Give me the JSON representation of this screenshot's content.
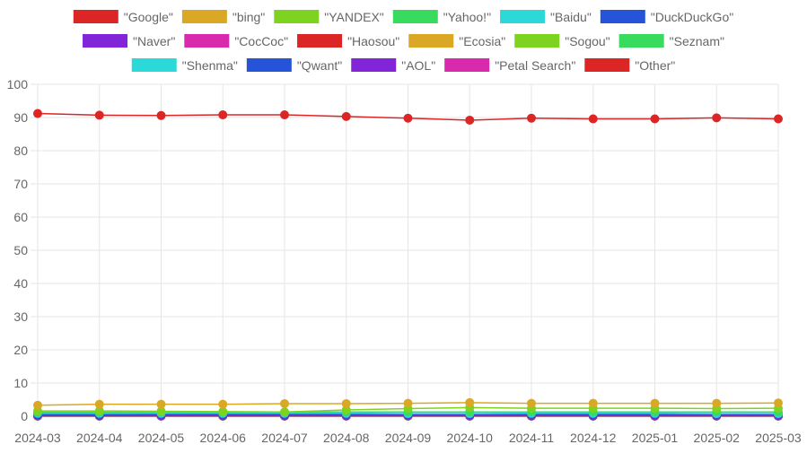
{
  "chart_data": {
    "type": "line",
    "title": "",
    "xlabel": "",
    "ylabel": "",
    "ylim": [
      0,
      100
    ],
    "yticks": [
      0,
      10,
      20,
      30,
      40,
      50,
      60,
      70,
      80,
      90,
      100
    ],
    "grid": true,
    "legend_position": "top",
    "categories": [
      "2024-03",
      "2024-04",
      "2024-05",
      "2024-06",
      "2024-07",
      "2024-08",
      "2024-09",
      "2024-10",
      "2024-11",
      "2024-12",
      "2025-01",
      "2025-02",
      "2025-03"
    ],
    "series": [
      {
        "name": "\"Google\"",
        "color": "#dc2626",
        "values": [
          91.2,
          90.7,
          90.6,
          90.8,
          90.8,
          90.3,
          89.8,
          89.2,
          89.8,
          89.6,
          89.6,
          89.9,
          89.6
        ]
      },
      {
        "name": "\"bing\"",
        "color": "#daa824",
        "values": [
          3.3,
          3.6,
          3.6,
          3.6,
          3.8,
          3.8,
          3.9,
          4.1,
          3.9,
          3.9,
          3.9,
          3.9,
          4.0
        ]
      },
      {
        "name": "\"YANDEX\"",
        "color": "#7ed321",
        "values": [
          1.6,
          1.6,
          1.5,
          1.4,
          1.3,
          1.9,
          2.3,
          2.6,
          2.4,
          2.4,
          2.4,
          2.3,
          2.4
        ]
      },
      {
        "name": "\"Yahoo!\"",
        "color": "#39db5f",
        "values": [
          1.2,
          1.2,
          1.3,
          1.2,
          1.2,
          1.3,
          1.3,
          1.3,
          1.3,
          1.3,
          1.3,
          1.3,
          1.3
        ]
      },
      {
        "name": "\"Baidu\"",
        "color": "#2bd9d9",
        "values": [
          0.9,
          0.9,
          0.9,
          0.9,
          0.9,
          0.9,
          0.8,
          0.8,
          0.9,
          0.9,
          0.9,
          0.8,
          0.8
        ]
      },
      {
        "name": "\"DuckDuckGo\"",
        "color": "#2554d8",
        "values": [
          0.5,
          0.5,
          0.6,
          0.6,
          0.6,
          0.6,
          0.6,
          0.6,
          0.6,
          0.6,
          0.6,
          0.6,
          0.6
        ]
      },
      {
        "name": "\"Naver\"",
        "color": "#8225d8",
        "values": [
          0.2,
          0.2,
          0.2,
          0.2,
          0.2,
          0.2,
          0.2,
          0.2,
          0.2,
          0.2,
          0.2,
          0.2,
          0.2
        ]
      },
      {
        "name": "\"CocCoc\"",
        "color": "#d92aad",
        "values": [
          0.2,
          0.2,
          0.2,
          0.2,
          0.2,
          0.2,
          0.2,
          0.2,
          0.2,
          0.2,
          0.2,
          0.2,
          0.2
        ]
      },
      {
        "name": "\"Haosou\"",
        "color": "#dc2626",
        "values": [
          0.1,
          0.1,
          0.1,
          0.1,
          0.1,
          0.1,
          0.1,
          0.1,
          0.1,
          0.1,
          0.1,
          0.1,
          0.1
        ]
      },
      {
        "name": "\"Ecosia\"",
        "color": "#daa824",
        "values": [
          0.1,
          0.1,
          0.1,
          0.1,
          0.1,
          0.1,
          0.1,
          0.1,
          0.1,
          0.1,
          0.1,
          0.1,
          0.1
        ]
      },
      {
        "name": "\"Sogou\"",
        "color": "#7ed321",
        "values": [
          0.1,
          0.1,
          0.1,
          0.1,
          0.1,
          0.1,
          0.1,
          0.1,
          0.1,
          0.1,
          0.1,
          0.1,
          0.1
        ]
      },
      {
        "name": "\"Seznam\"",
        "color": "#39db5f",
        "values": [
          0.1,
          0.1,
          0.1,
          0.1,
          0.1,
          0.1,
          0.1,
          0.1,
          0.1,
          0.1,
          0.1,
          0.1,
          0.1
        ]
      },
      {
        "name": "\"Shenma\"",
        "color": "#2bd9d9",
        "values": [
          0.05,
          0.05,
          0.05,
          0.05,
          0.05,
          0.05,
          0.05,
          0.05,
          0.05,
          0.05,
          0.05,
          0.05,
          0.05
        ]
      },
      {
        "name": "\"Qwant\"",
        "color": "#2554d8",
        "values": [
          0.05,
          0.05,
          0.05,
          0.05,
          0.05,
          0.05,
          0.05,
          0.05,
          0.05,
          0.05,
          0.05,
          0.05,
          0.05
        ]
      },
      {
        "name": "\"AOL\"",
        "color": "#8225d8",
        "values": [
          0.03,
          0.03,
          0.03,
          0.03,
          0.03,
          0.03,
          0.03,
          0.03,
          0.03,
          0.03,
          0.03,
          0.03,
          0.03
        ]
      },
      {
        "name": "\"Petal Search\"",
        "color": "#d92aad",
        "values": [
          0.02,
          0.02,
          0.02,
          0.02,
          0.02,
          0.02,
          0.02,
          0.02,
          0.02,
          0.02,
          0.02,
          0.02,
          0.02
        ]
      },
      {
        "name": "\"Other\"",
        "color": "#dc2626",
        "values": [
          0.3,
          0.3,
          0.3,
          0.3,
          0.3,
          0.3,
          0.3,
          0.3,
          0.3,
          0.3,
          0.3,
          0.3,
          0.3
        ]
      }
    ]
  }
}
